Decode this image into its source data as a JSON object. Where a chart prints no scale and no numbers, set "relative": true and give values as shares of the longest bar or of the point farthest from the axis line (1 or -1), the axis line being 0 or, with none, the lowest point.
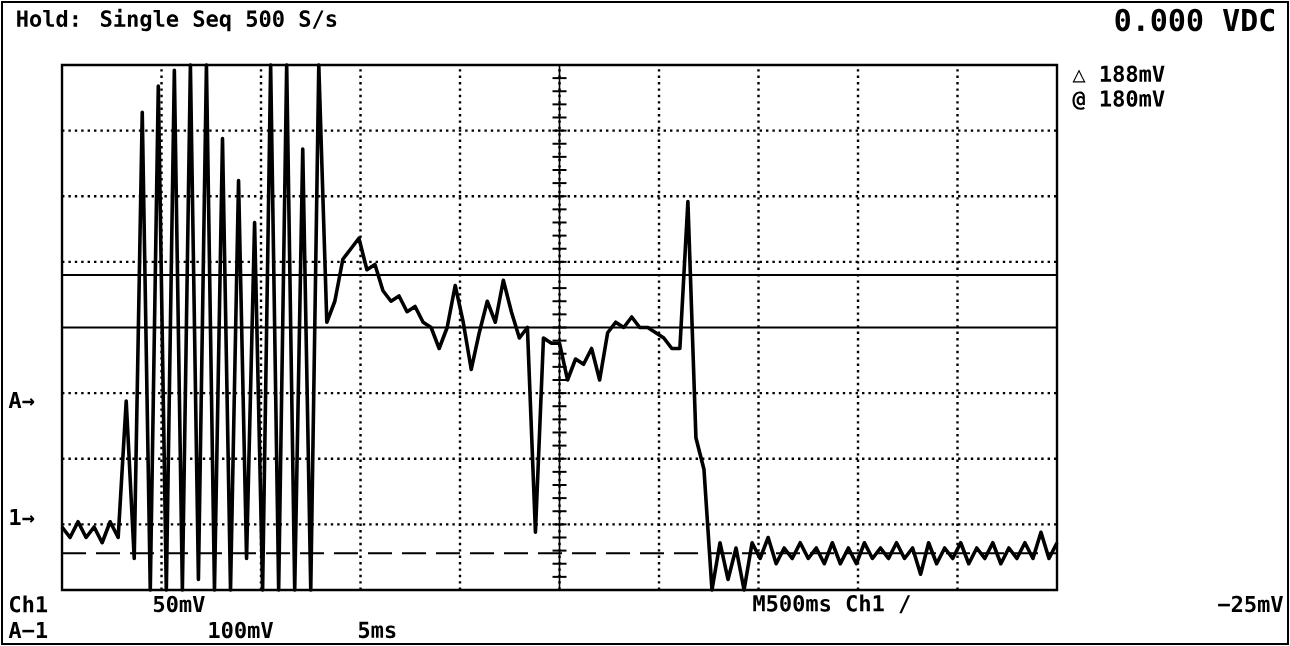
{
  "chart_data": {
    "type": "line",
    "relative": true,
    "title": "Hold: Single Seq 500 S/s",
    "subtitle": "0.000 VDC",
    "categories": [
      null,
      null,
      null,
      null,
      null,
      null,
      null,
      null,
      null,
      null,
      null,
      null,
      null,
      null,
      null,
      null,
      null,
      null,
      null,
      null,
      null,
      null,
      null,
      null,
      null,
      null,
      null,
      null,
      null,
      null,
      null,
      null,
      null,
      null,
      null,
      null,
      null,
      null,
      null,
      null,
      null,
      null,
      null,
      null,
      null,
      null,
      null,
      null,
      null,
      null,
      null,
      null,
      null,
      null,
      null,
      null,
      null,
      null,
      null,
      null,
      null,
      null,
      null,
      null,
      null,
      null,
      null,
      null,
      null,
      null,
      null,
      null,
      null,
      null,
      null,
      null,
      null,
      null,
      null,
      null,
      null,
      null,
      null,
      null,
      null,
      null,
      null,
      null,
      null,
      null,
      null,
      null,
      null,
      null,
      null,
      null,
      null,
      null,
      null,
      null,
      null,
      null,
      null,
      null,
      null,
      null,
      null,
      null,
      null,
      null,
      null,
      null,
      null,
      null,
      null,
      null,
      null,
      null,
      null,
      null,
      null,
      null,
      null,
      null,
      null
    ],
    "series": [
      {
        "color": "#000000",
        "values": [
          0.12,
          0.1,
          0.13,
          0.1,
          0.12,
          0.09,
          0.13,
          0.1,
          0.36,
          0.06,
          0.91,
          0,
          0.96,
          0,
          0.99,
          0,
          1,
          0.02,
          1,
          0,
          0.86,
          0,
          0.78,
          0.06,
          0.7,
          0,
          1,
          0,
          1,
          0,
          0.84,
          0,
          1,
          0.51,
          0.55,
          0.63,
          0.65,
          0.67,
          0.61,
          0.62,
          0.57,
          0.55,
          0.56,
          0.53,
          0.54,
          0.51,
          0.5,
          0.46,
          0.5,
          0.58,
          0.51,
          0.42,
          0.49,
          0.55,
          0.51,
          0.59,
          0.53,
          0.48,
          0.5,
          0.11,
          0.48,
          0.47,
          0.47,
          0.4,
          0.44,
          0.43,
          0.46,
          0.4,
          0.49,
          0.51,
          0.5,
          0.52,
          0.5,
          0.5,
          0.49,
          0.48,
          0.46,
          0.46,
          0.74,
          0.29,
          0.23,
          0,
          0.09,
          0.02,
          0.08,
          0,
          0.09,
          0.06,
          0.1,
          0.05,
          0.08,
          0.06,
          0.09,
          0.06,
          0.08,
          0.05,
          0.09,
          0.05,
          0.08,
          0.05,
          0.09,
          0.06,
          0.08,
          0.06,
          0.09,
          0.06,
          0.08,
          0.03,
          0.09,
          0.05,
          0.08,
          0.06,
          0.09,
          0.05,
          0.08,
          0.06,
          0.09,
          0.05,
          0.08,
          0.06,
          0.09,
          0.06,
          0.11,
          0.06,
          0.09
        ]
      }
    ],
    "ref_lines": [
      {
        "axis": "y",
        "value": 0.6,
        "line_style": "solid"
      },
      {
        "axis": "y",
        "value": 0.5,
        "line_style": "solid"
      },
      {
        "axis": "y",
        "value": 0.07,
        "line_style": "dashed"
      }
    ],
    "annotations": [
      "△ 188mV",
      "@ 180mV",
      "A→",
      "1→",
      "Ch1",
      "50mV",
      "M500ms Ch1 /",
      "−25mV",
      "A−1",
      "100mV",
      "5ms"
    ],
    "grid": true,
    "marker": "none",
    "line_style": "solid"
  }
}
